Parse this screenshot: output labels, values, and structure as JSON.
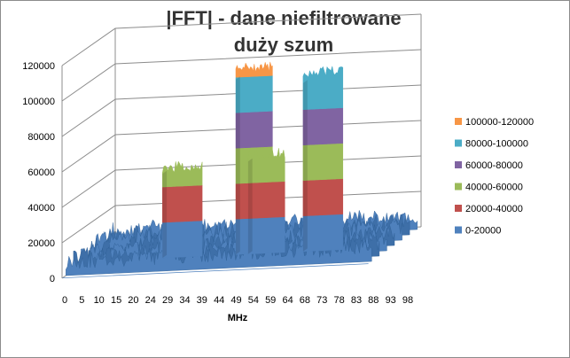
{
  "chart_data": {
    "type": "area",
    "style": "3d-surface",
    "title_line1": "|FFT| - dane niefiltrowane",
    "title_line2": "duży szum",
    "xlabel": "MHz",
    "ylabel": "",
    "x_ticks": [
      "0",
      "5",
      "10",
      "15",
      "20",
      "24",
      "29",
      "34",
      "39",
      "44",
      "49",
      "54",
      "59",
      "64",
      "68",
      "73",
      "78",
      "83",
      "88",
      "93",
      "98"
    ],
    "x_range": [
      0,
      100
    ],
    "y_ticks": [
      "0",
      "20000",
      "40000",
      "60000",
      "80000",
      "100000",
      "120000"
    ],
    "ylim": [
      0,
      120000
    ],
    "grid": true,
    "legend_position": "right",
    "legend": [
      {
        "label": "100000-120000",
        "color": "#f79646"
      },
      {
        "label": "80000-100000",
        "color": "#4bacc6"
      },
      {
        "label": "60000-80000",
        "color": "#8064a2"
      },
      {
        "label": "40000-60000",
        "color": "#9bbb59"
      },
      {
        "label": "20000-40000",
        "color": "#c0504d"
      },
      {
        "label": "0-20000",
        "color": "#4f81bd"
      }
    ],
    "noise_floor": 10000,
    "peaks": [
      {
        "x_start": 25,
        "x_end": 38,
        "height": 50000
      },
      {
        "x_start": 49,
        "x_end": 61,
        "height": 104000
      },
      {
        "x_start": 53,
        "x_end": 65,
        "height": 55000
      },
      {
        "x_start": 71,
        "x_end": 84,
        "height": 100000
      }
    ]
  }
}
